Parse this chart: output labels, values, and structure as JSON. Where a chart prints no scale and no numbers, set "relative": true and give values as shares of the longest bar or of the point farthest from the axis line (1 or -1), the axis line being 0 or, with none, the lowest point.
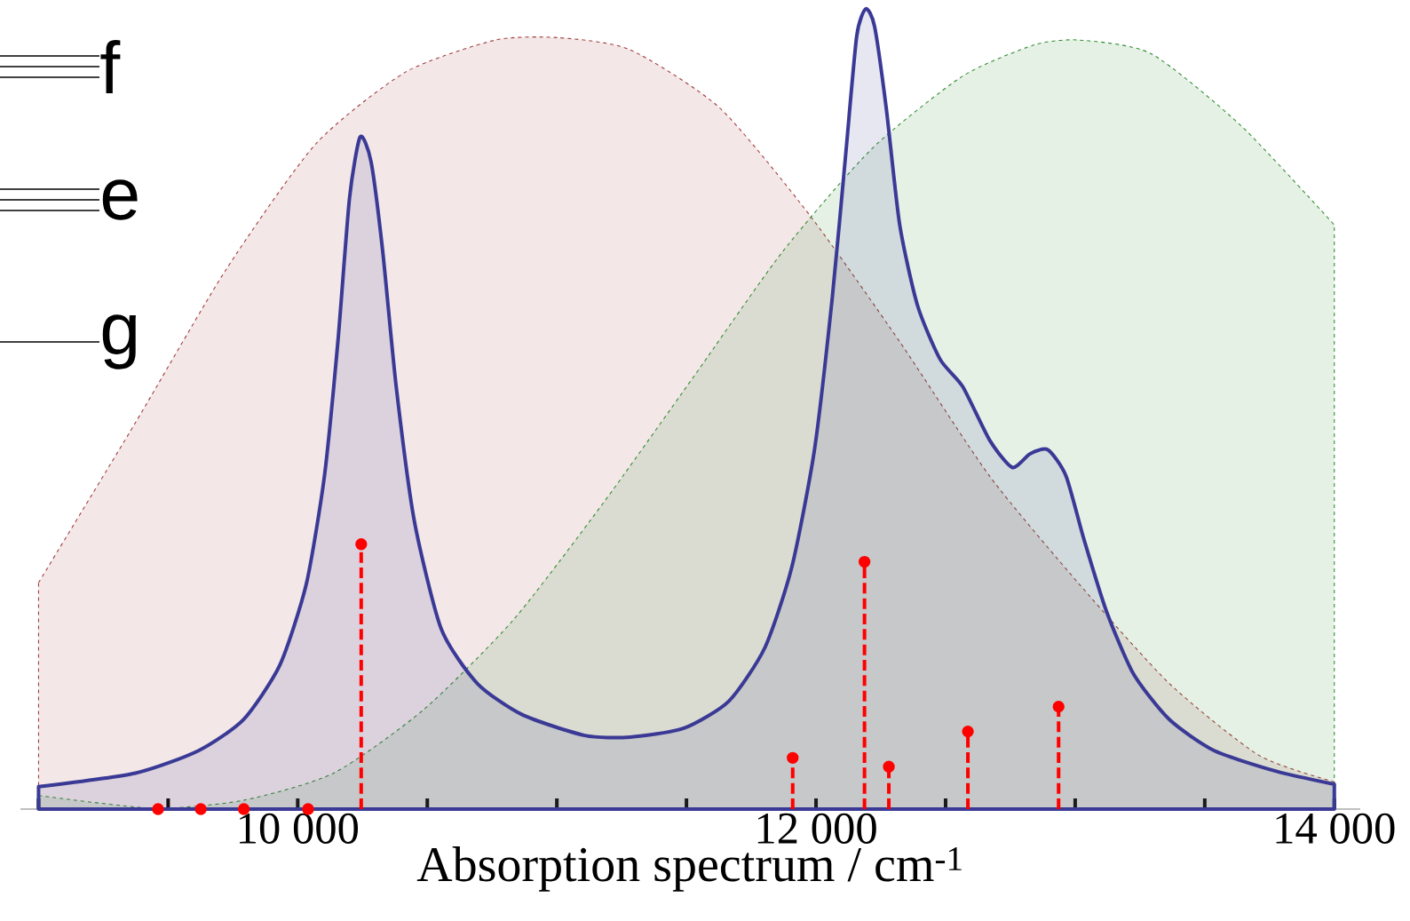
{
  "chart_data": {
    "type": "area",
    "xlabel": "Absorption spectrum / cm$^{-1}$",
    "relative": true,
    "xlim": [
      8930,
      14100
    ],
    "xticks": [
      {
        "value": 9000,
        "label": null
      },
      {
        "value": 9500,
        "label": null
      },
      {
        "value": 10000,
        "label": "10 000"
      },
      {
        "value": 10500,
        "label": null
      },
      {
        "value": 11000,
        "label": null
      },
      {
        "value": 11500,
        "label": null
      },
      {
        "value": 12000,
        "label": "12 000"
      },
      {
        "value": 12500,
        "label": null
      },
      {
        "value": 13000,
        "label": null
      },
      {
        "value": 13500,
        "label": null
      },
      {
        "value": 14000,
        "label": "14 000"
      }
    ],
    "annotations": [
      "f",
      "e",
      "g"
    ],
    "series": [
      {
        "color": "#a03a3a",
        "line_style": "dashed",
        "x": [
          9000,
          9374,
          9723,
          10069,
          10416,
          10763,
          11004,
          11282,
          11629,
          11976,
          12323,
          12670,
          13016,
          13363,
          13710,
          14000
        ],
        "values": [
          0.283,
          0.483,
          0.674,
          0.831,
          0.921,
          0.961,
          0.964,
          0.949,
          0.876,
          0.742,
          0.584,
          0.416,
          0.281,
          0.157,
          0.067,
          0.034
        ]
      },
      {
        "color": "#2e8b2e",
        "line_style": "dashed",
        "x": [
          9000,
          9444,
          9791,
          10139,
          10485,
          10831,
          11178,
          11525,
          11872,
          12218,
          12566,
          12843,
          13016,
          13293,
          13640,
          14000
        ],
        "values": [
          0.017,
          0.001,
          0.011,
          0.045,
          0.124,
          0.236,
          0.382,
          0.539,
          0.697,
          0.826,
          0.916,
          0.955,
          0.961,
          0.944,
          0.854,
          0.73
        ]
      },
      {
        "color": "#3a3a96",
        "line_style": "solid",
        "x": [
          9000,
          9374,
          9617,
          9791,
          9931,
          10033,
          10103,
          10155,
          10200,
          10241,
          10283,
          10328,
          10380,
          10450,
          10554,
          10693,
          10866,
          11108,
          11282,
          11490,
          11664,
          11803,
          11907,
          11994,
          12063,
          12115,
          12157,
          12192,
          12226,
          12271,
          12323,
          12392,
          12479,
          12566,
          12670,
          12757,
          12826,
          12895,
          12965,
          13034,
          13121,
          13225,
          13363,
          13537,
          13779,
          14000
        ],
        "values": [
          0.028,
          0.045,
          0.073,
          0.112,
          0.18,
          0.281,
          0.416,
          0.584,
          0.764,
          0.84,
          0.809,
          0.697,
          0.528,
          0.36,
          0.225,
          0.157,
          0.118,
          0.092,
          0.09,
          0.101,
          0.135,
          0.202,
          0.303,
          0.449,
          0.64,
          0.82,
          0.966,
          1.0,
          0.978,
          0.876,
          0.73,
          0.629,
          0.562,
          0.528,
          0.461,
          0.427,
          0.444,
          0.449,
          0.416,
          0.337,
          0.247,
          0.169,
          0.112,
          0.073,
          0.047,
          0.031
        ]
      },
      {
        "type": "lollipop",
        "color": "#ff0000",
        "line_style": "dashed",
        "marker": "circle",
        "x": [
          9461,
          9626,
          9792,
          10040,
          10245,
          11910,
          12187,
          12281,
          12586,
          12936
        ],
        "values": [
          0,
          0,
          0,
          0,
          0.331,
          0.064,
          0.309,
          0.053,
          0.097,
          0.128
        ]
      }
    ]
  }
}
